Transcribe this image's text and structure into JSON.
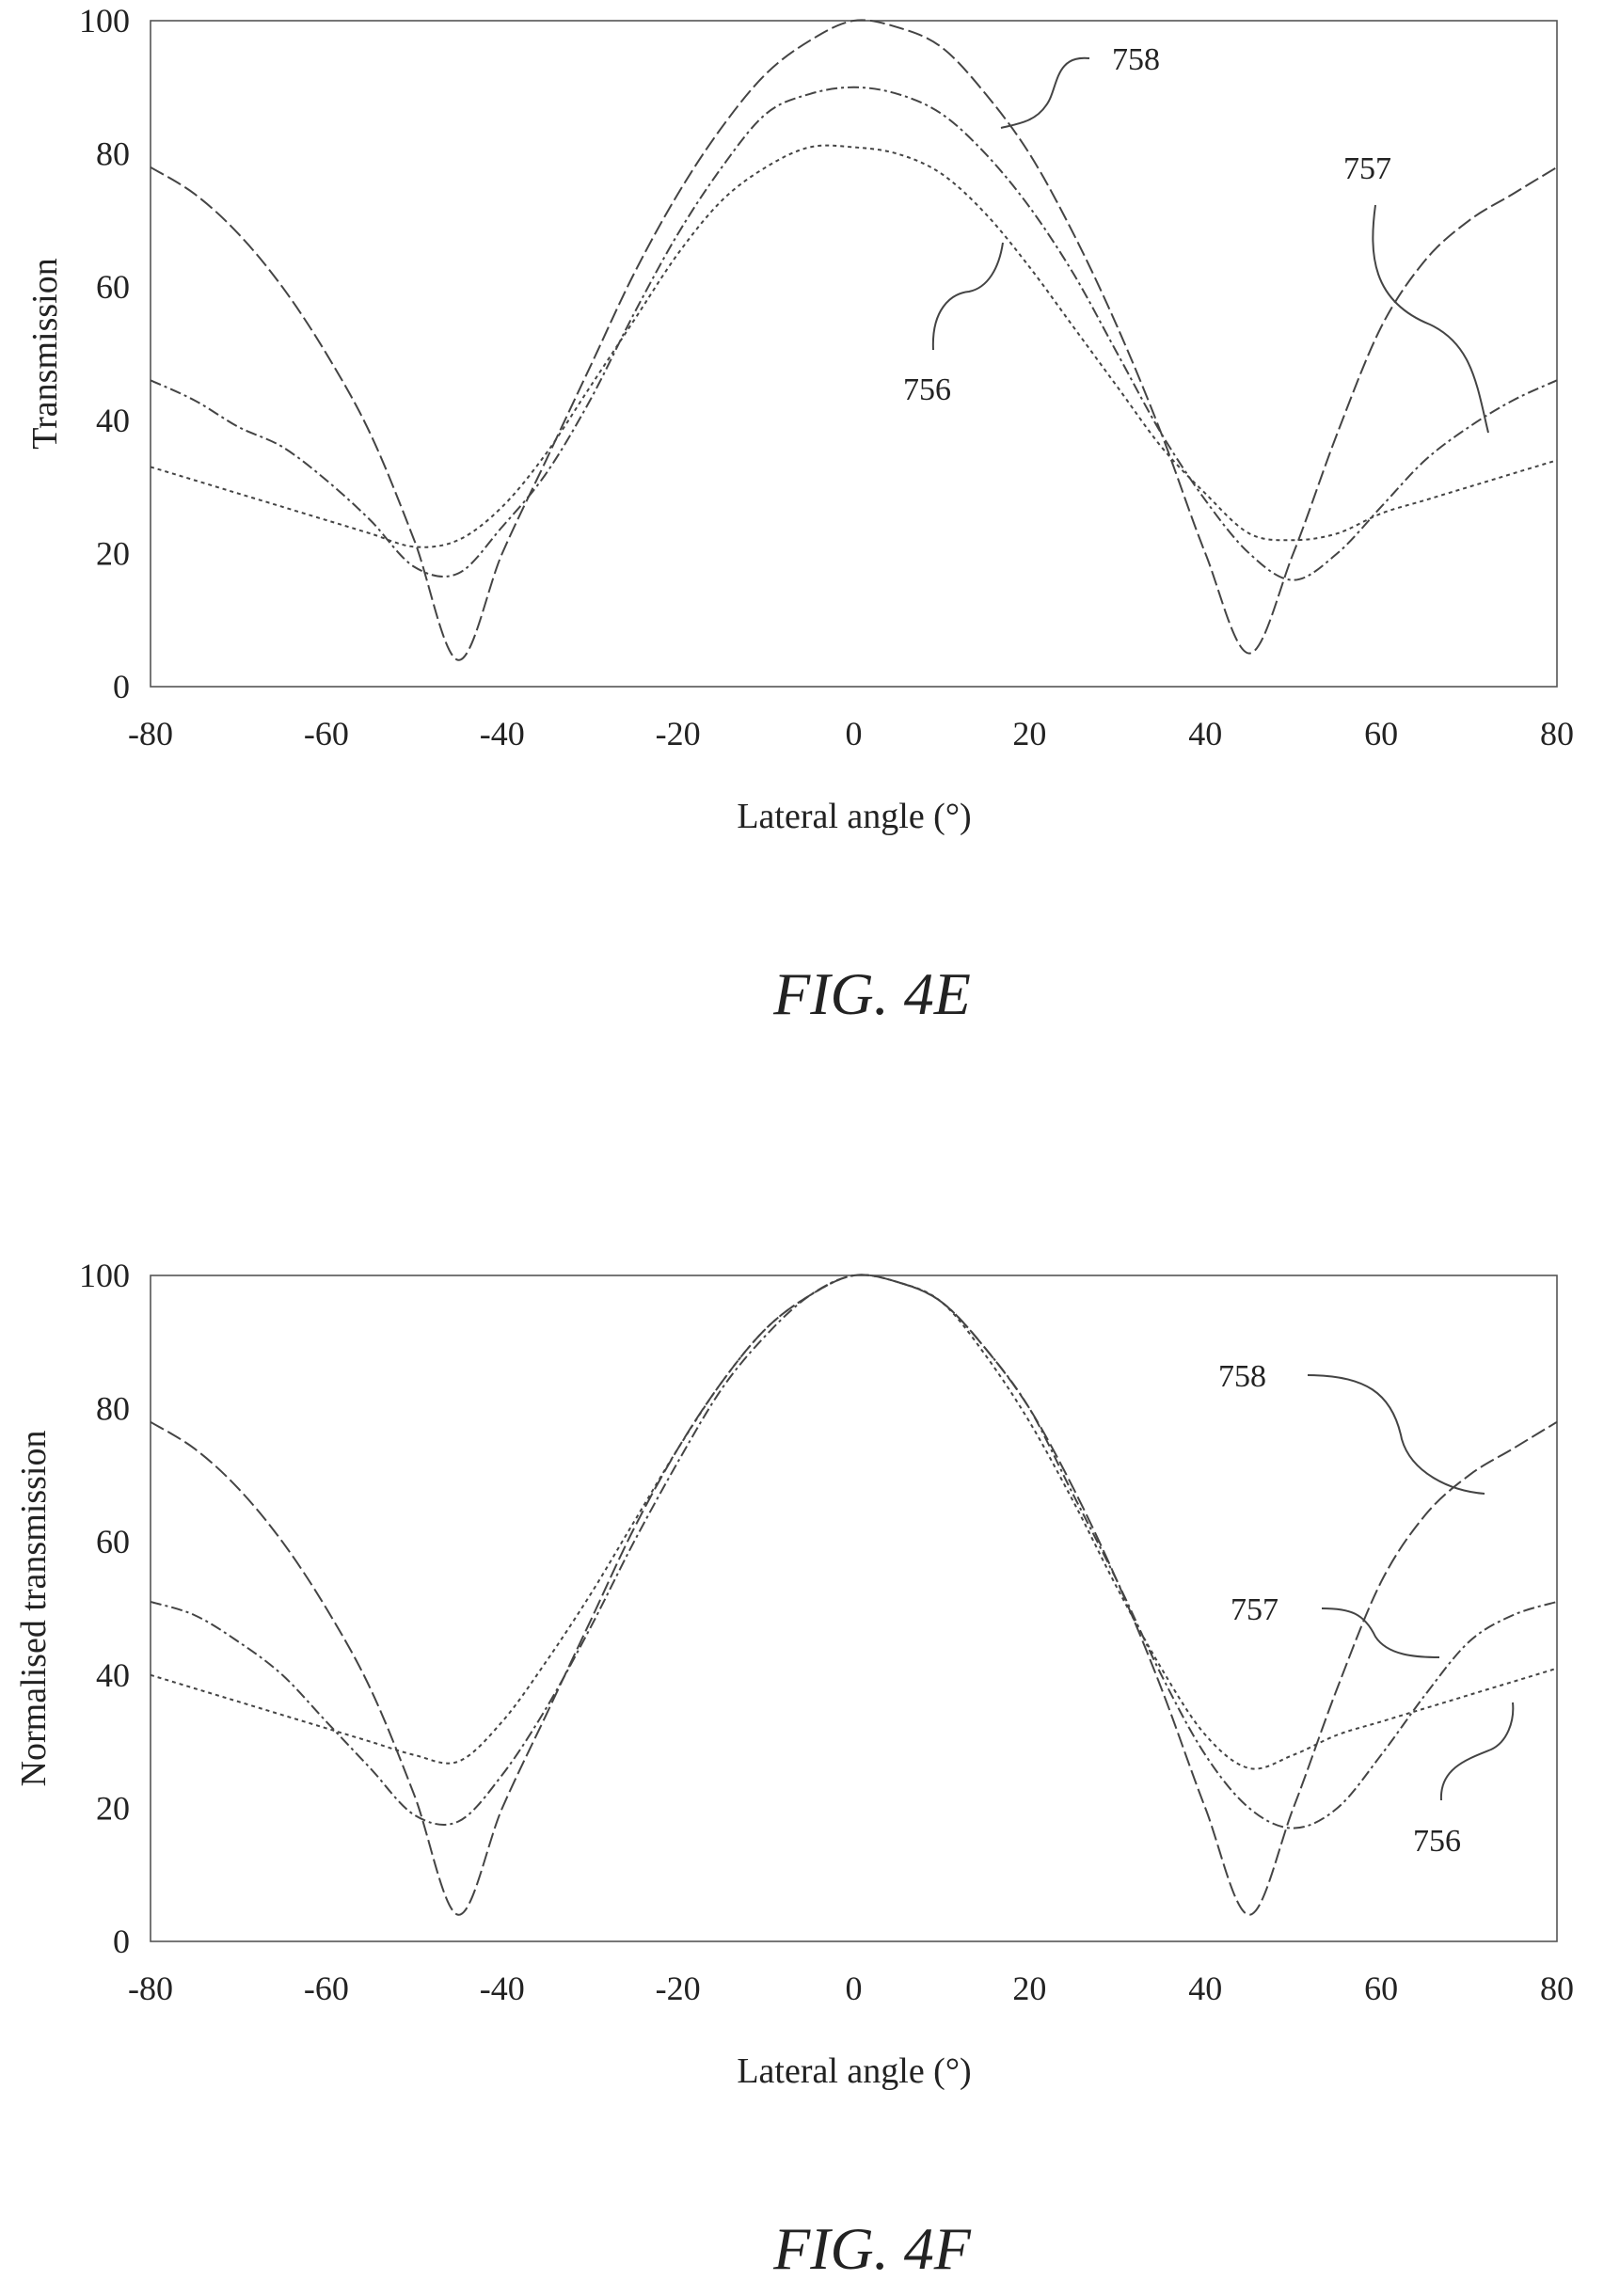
{
  "chart_data": [
    {
      "type": "line",
      "title": "",
      "caption": "FIG. 4E",
      "xlabel": "Lateral angle (°)",
      "ylabel": "Transmission",
      "xlim": [
        -80,
        80
      ],
      "ylim": [
        0,
        100
      ],
      "xticks": [
        "-80",
        "-60",
        "-40",
        "-20",
        "0",
        "20",
        "40",
        "60",
        "80"
      ],
      "yticks": [
        "0",
        "20",
        "40",
        "60",
        "80",
        "100"
      ],
      "grid": false,
      "legend": "none",
      "series": [
        {
          "name": "758",
          "dash": "16 5",
          "x": [
            -80,
            -75,
            -70,
            -65,
            -60,
            -55,
            -50,
            -45,
            -40,
            -35,
            -30,
            -25,
            -20,
            -15,
            -10,
            -5,
            0,
            5,
            10,
            15,
            20,
            25,
            30,
            35,
            40,
            45,
            50,
            55,
            60,
            65,
            70,
            75,
            80
          ],
          "y": [
            78,
            74,
            68,
            60,
            50,
            38,
            22,
            4,
            20,
            34,
            48,
            62,
            74,
            84,
            92,
            97,
            100,
            99,
            96,
            89,
            80,
            68,
            54,
            38,
            20,
            5,
            20,
            38,
            54,
            64,
            70,
            74,
            78
          ]
        },
        {
          "name": "757",
          "dash": "12 4 3 4",
          "x": [
            -80,
            -75,
            -70,
            -65,
            -60,
            -55,
            -50,
            -45,
            -40,
            -35,
            -30,
            -25,
            -20,
            -15,
            -10,
            -5,
            0,
            5,
            10,
            15,
            20,
            25,
            30,
            35,
            40,
            45,
            50,
            55,
            60,
            65,
            70,
            75,
            80
          ],
          "y": [
            46,
            43,
            39,
            36,
            31,
            25,
            18,
            17,
            24,
            32,
            43,
            56,
            68,
            78,
            86,
            89,
            90,
            89,
            86,
            80,
            72,
            62,
            50,
            38,
            28,
            20,
            16,
            20,
            27,
            34,
            39,
            43,
            46
          ]
        },
        {
          "name": "756",
          "dash": "4 4",
          "x": [
            -80,
            -75,
            -70,
            -65,
            -60,
            -55,
            -50,
            -45,
            -40,
            -35,
            -30,
            -25,
            -20,
            -15,
            -10,
            -5,
            0,
            5,
            10,
            15,
            20,
            25,
            30,
            35,
            40,
            45,
            50,
            55,
            60,
            65,
            70,
            75,
            80
          ],
          "y": [
            33,
            31,
            29,
            27,
            25,
            23,
            21,
            22,
            27,
            35,
            45,
            55,
            65,
            73,
            78,
            81,
            81,
            80,
            77,
            71,
            63,
            54,
            45,
            36,
            29,
            23,
            22,
            23,
            26,
            28,
            30,
            32,
            34
          ]
        }
      ],
      "annotations": [
        "758",
        "757",
        "756"
      ]
    },
    {
      "type": "line",
      "title": "",
      "caption": "FIG. 4F",
      "xlabel": "Lateral angle (°)",
      "ylabel": "Normalised transmission",
      "xlim": [
        -80,
        80
      ],
      "ylim": [
        0,
        100
      ],
      "xticks": [
        "-80",
        "-60",
        "-40",
        "-20",
        "0",
        "20",
        "40",
        "60",
        "80"
      ],
      "yticks": [
        "0",
        "20",
        "40",
        "60",
        "80",
        "100"
      ],
      "grid": false,
      "legend": "none",
      "series": [
        {
          "name": "758",
          "dash": "16 5",
          "x": [
            -80,
            -75,
            -70,
            -65,
            -60,
            -55,
            -50,
            -45,
            -40,
            -35,
            -30,
            -25,
            -20,
            -15,
            -10,
            -5,
            0,
            5,
            10,
            15,
            20,
            25,
            30,
            35,
            40,
            45,
            50,
            55,
            60,
            65,
            70,
            75,
            80
          ],
          "y": [
            78,
            74,
            68,
            60,
            50,
            38,
            22,
            4,
            20,
            34,
            48,
            62,
            74,
            84,
            92,
            97,
            100,
            99,
            96,
            89,
            80,
            68,
            54,
            38,
            20,
            4,
            20,
            38,
            54,
            64,
            70,
            74,
            78
          ]
        },
        {
          "name": "757",
          "dash": "12 4 3 4",
          "x": [
            -80,
            -75,
            -70,
            -65,
            -60,
            -55,
            -50,
            -45,
            -40,
            -35,
            -30,
            -25,
            -20,
            -15,
            -10,
            -5,
            0,
            5,
            10,
            15,
            20,
            25,
            30,
            35,
            40,
            45,
            50,
            55,
            60,
            65,
            70,
            75,
            80
          ],
          "y": [
            51,
            49,
            45,
            40,
            33,
            26,
            19,
            18,
            25,
            35,
            47,
            60,
            72,
            83,
            91,
            97,
            100,
            99,
            96,
            89,
            80,
            67,
            54,
            40,
            28,
            20,
            17,
            20,
            28,
            37,
            45,
            49,
            51
          ]
        },
        {
          "name": "756",
          "dash": "4 4",
          "x": [
            -80,
            -75,
            -70,
            -65,
            -60,
            -55,
            -50,
            -45,
            -40,
            -35,
            -30,
            -25,
            -20,
            -15,
            -10,
            -5,
            0,
            5,
            10,
            15,
            20,
            25,
            30,
            35,
            40,
            45,
            50,
            55,
            60,
            65,
            70,
            75,
            80
          ],
          "y": [
            40,
            38,
            36,
            34,
            32,
            30,
            28,
            27,
            33,
            42,
            52,
            63,
            74,
            84,
            92,
            97,
            100,
            99,
            96,
            88,
            78,
            66,
            53,
            41,
            31,
            26,
            28,
            31,
            33,
            35,
            37,
            39,
            41
          ]
        }
      ],
      "annotations": [
        "758",
        "757",
        "756"
      ]
    }
  ]
}
